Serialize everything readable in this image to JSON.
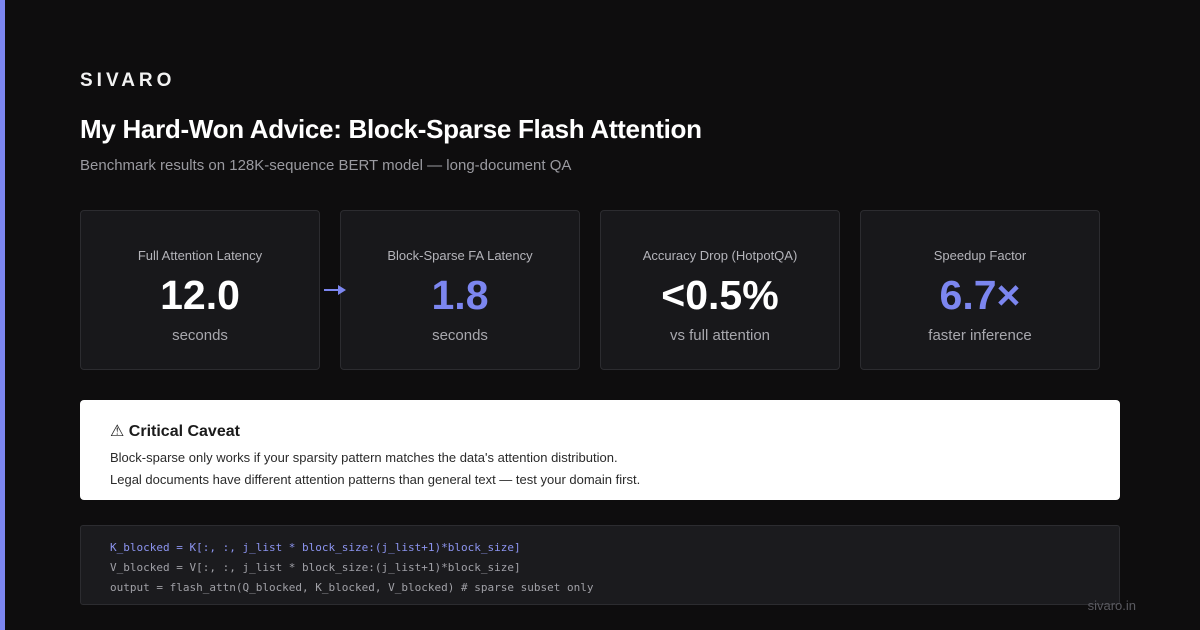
{
  "brand": "SIVARO",
  "header": {
    "title": "My Hard-Won Advice: Block-Sparse Flash Attention",
    "subtitle": "Benchmark results on 128K-sequence BERT model — long-document QA"
  },
  "stats": [
    {
      "label": "Full Attention Latency",
      "value": "12.0",
      "unit": "seconds"
    },
    {
      "label": "Block-Sparse FA Latency",
      "value": "1.8",
      "unit": "seconds"
    },
    {
      "label": "Accuracy Drop (HotpotQA)",
      "value": "<0.5%",
      "unit": "vs full attention"
    },
    {
      "label": "Speedup Factor",
      "value": "6.7×",
      "unit": "faster inference"
    }
  ],
  "caveat": {
    "title": "⚠ Critical Caveat",
    "lines": [
      "Block-sparse only works if your sparsity pattern matches the data's attention distribution.",
      "Legal documents have different attention patterns than general text — test your domain first."
    ]
  },
  "code": [
    "K_blocked = K[:, :, j_list * block_size:(j_list+1)*block_size]",
    "V_blocked = V[:, :, j_list * block_size:(j_list+1)*block_size]",
    "output = flash_attn(Q_blocked, K_blocked, V_blocked) # sparse subset only"
  ],
  "footer": "sivaro.in"
}
